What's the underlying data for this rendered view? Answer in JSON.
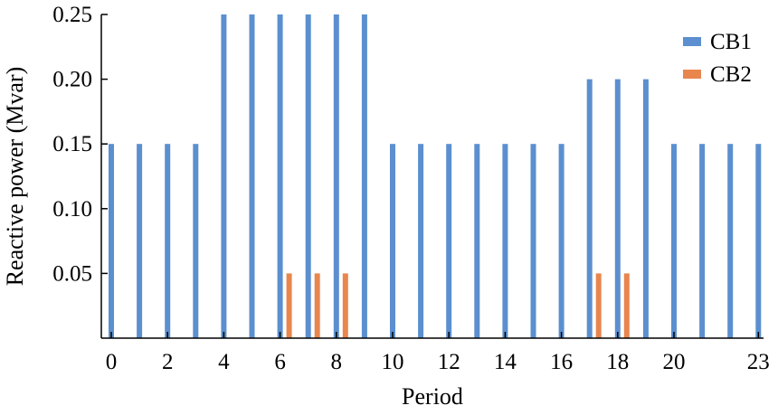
{
  "chart_data": {
    "type": "bar",
    "title": "",
    "xlabel": "Period",
    "ylabel": "Reactive power (Mvar)",
    "x": [
      0,
      1,
      2,
      3,
      4,
      5,
      6,
      7,
      8,
      9,
      10,
      11,
      12,
      13,
      14,
      15,
      16,
      17,
      18,
      19,
      20,
      21,
      22,
      23
    ],
    "x_tick_labels": [
      "0",
      "2",
      "4",
      "6",
      "8",
      "10",
      "12",
      "14",
      "16",
      "18",
      "20",
      "23"
    ],
    "x_tick_values": [
      0,
      2,
      4,
      6,
      8,
      10,
      12,
      14,
      16,
      18,
      20,
      23
    ],
    "ylim": [
      0,
      0.25
    ],
    "y_ticks": [
      0.05,
      0.1,
      0.15,
      0.2,
      0.25
    ],
    "y_tick_labels": [
      "0.05",
      "0.10",
      "0.15",
      "0.20",
      "0.25"
    ],
    "legend_position": "top-right",
    "grid": false,
    "series": [
      {
        "name": "CB1",
        "color": "#5b8fcf",
        "values": [
          0.15,
          0.15,
          0.15,
          0.15,
          0.25,
          0.25,
          0.25,
          0.25,
          0.25,
          0.25,
          0.15,
          0.15,
          0.15,
          0.15,
          0.15,
          0.15,
          0.15,
          0.2,
          0.2,
          0.2,
          0.15,
          0.15,
          0.15,
          0.15
        ]
      },
      {
        "name": "CB2",
        "color": "#e8864e",
        "values": [
          0,
          0,
          0,
          0,
          0,
          0,
          0.05,
          0.05,
          0.05,
          0,
          0,
          0,
          0,
          0,
          0,
          0,
          0,
          0.05,
          0.05,
          0,
          0,
          0,
          0,
          0
        ]
      }
    ]
  }
}
